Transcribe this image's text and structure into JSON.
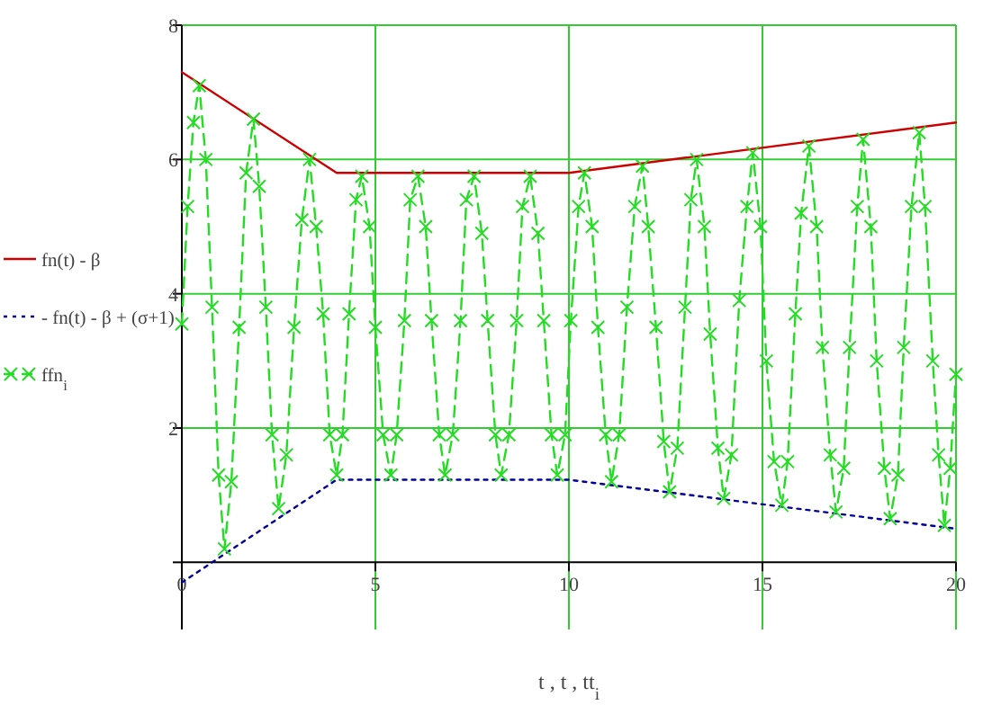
{
  "chart_data": {
    "type": "line",
    "xlabel": "t , t , tt$_{i}$",
    "xlim": [
      0,
      20
    ],
    "xticks": [
      0,
      5,
      10,
      15,
      20
    ],
    "ylim": [
      -1,
      8
    ],
    "yticks": [
      {
        "value": 0,
        "label": null
      },
      2,
      4,
      6,
      8
    ],
    "grid": true,
    "legend": "left",
    "series": [
      {
        "name": "fn(t) - β",
        "color": "#cc0000",
        "line_style": "solid",
        "marker": "none",
        "x": [
          0,
          4,
          10,
          20
        ],
        "values": [
          7.3,
          5.8,
          5.8,
          6.55
        ]
      },
      {
        "name": "- fn(t) - β + (σ+1)",
        "color": "#000099",
        "line_style": "dotted",
        "marker": "none",
        "x": [
          0,
          4,
          10,
          20
        ],
        "values": [
          -0.3,
          1.23,
          1.23,
          0.5
        ]
      },
      {
        "name": "ffn$_{i}$",
        "color": "#22dd22",
        "line_style": "dashed",
        "marker": "cross",
        "x": [
          0,
          0.15,
          0.3,
          0.45,
          0.62,
          0.78,
          0.95,
          1.1,
          1.28,
          1.48,
          1.66,
          1.85,
          2.0,
          2.17,
          2.33,
          2.5,
          2.7,
          2.9,
          3.1,
          3.3,
          3.47,
          3.65,
          3.82,
          4.0,
          4.15,
          4.32,
          4.5,
          4.65,
          4.85,
          5.0,
          5.2,
          5.4,
          5.55,
          5.75,
          5.9,
          6.1,
          6.3,
          6.45,
          6.65,
          6.8,
          7.0,
          7.2,
          7.35,
          7.55,
          7.75,
          7.9,
          8.1,
          8.25,
          8.45,
          8.65,
          8.8,
          9.0,
          9.2,
          9.35,
          9.55,
          9.7,
          9.9,
          10.05,
          10.25,
          10.4,
          10.6,
          10.75,
          10.95,
          11.1,
          11.3,
          11.5,
          11.7,
          11.9,
          12.05,
          12.25,
          12.45,
          12.6,
          12.8,
          13.0,
          13.15,
          13.3,
          13.5,
          13.65,
          13.85,
          14.0,
          14.2,
          14.4,
          14.6,
          14.75,
          14.95,
          15.1,
          15.3,
          15.5,
          15.65,
          15.85,
          16.0,
          16.2,
          16.4,
          16.55,
          16.75,
          16.9,
          17.1,
          17.25,
          17.45,
          17.6,
          17.8,
          17.95,
          18.15,
          18.3,
          18.5,
          18.65,
          18.85,
          19.05,
          19.2,
          19.4,
          19.55,
          19.7,
          19.85,
          20
        ],
        "values": [
          3.55,
          5.3,
          6.55,
          7.1,
          6.0,
          3.8,
          1.3,
          0.2,
          1.2,
          3.5,
          5.8,
          6.6,
          5.6,
          3.8,
          1.9,
          0.8,
          1.6,
          3.5,
          5.1,
          6.0,
          5.0,
          3.7,
          1.9,
          1.3,
          1.9,
          3.7,
          5.4,
          5.75,
          5.0,
          3.5,
          1.9,
          1.3,
          1.9,
          3.6,
          5.4,
          5.75,
          5.0,
          3.6,
          1.9,
          1.3,
          1.9,
          3.6,
          5.4,
          5.75,
          4.9,
          3.6,
          1.9,
          1.3,
          1.9,
          3.6,
          5.3,
          5.75,
          4.9,
          3.6,
          1.9,
          1.3,
          1.9,
          3.6,
          5.3,
          5.8,
          5.0,
          3.5,
          1.9,
          1.2,
          1.9,
          3.8,
          5.3,
          5.9,
          5.0,
          3.5,
          1.8,
          1.05,
          1.7,
          3.8,
          5.4,
          6.0,
          5.0,
          3.4,
          1.7,
          0.95,
          1.6,
          3.9,
          5.3,
          6.1,
          5.0,
          3.0,
          1.5,
          0.85,
          1.5,
          3.7,
          5.2,
          6.2,
          5.0,
          3.2,
          1.6,
          0.75,
          1.4,
          3.2,
          5.3,
          6.3,
          5.0,
          3.0,
          1.4,
          0.65,
          1.3,
          3.2,
          5.3,
          6.4,
          5.3,
          3.0,
          1.6,
          0.55,
          1.4,
          2.8
        ]
      }
    ]
  }
}
